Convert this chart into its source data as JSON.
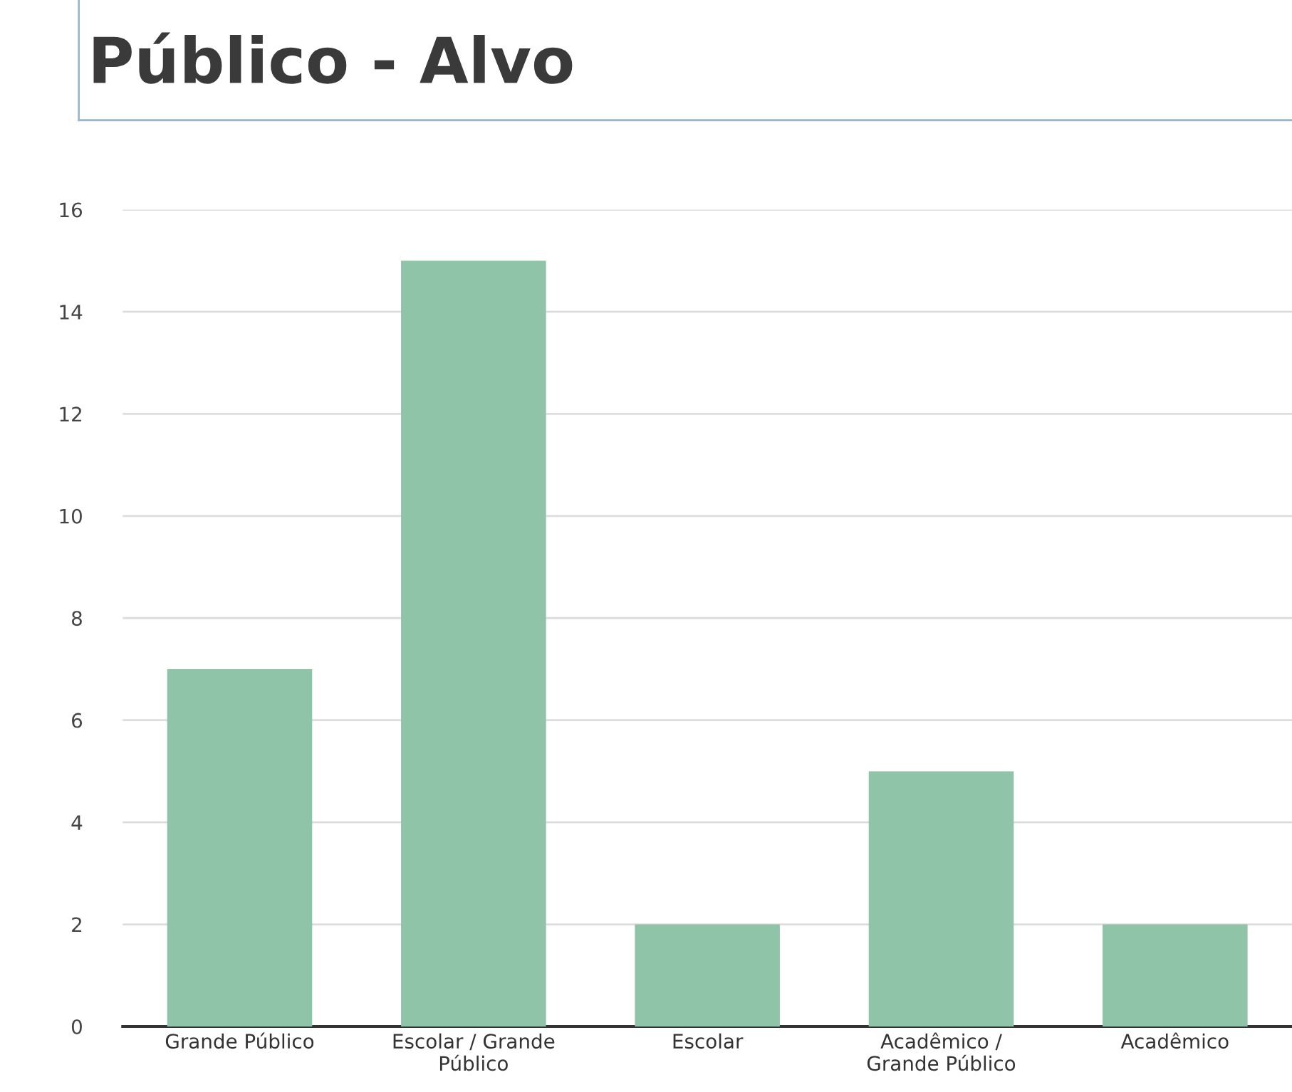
{
  "chart_data": {
    "type": "bar",
    "title": "Público - Alvo",
    "categories": [
      "Grande Público",
      "Escolar / Grande Público",
      "Escolar",
      "Acadêmico / Grande Público",
      "Acadêmico"
    ],
    "values": [
      7,
      15,
      2,
      5,
      2
    ],
    "color": "#8fc4a8",
    "ylim": [
      0,
      16
    ],
    "yticks": [
      0,
      2,
      4,
      6,
      8,
      10,
      12,
      14,
      16
    ],
    "grid": "y",
    "legend": false
  }
}
